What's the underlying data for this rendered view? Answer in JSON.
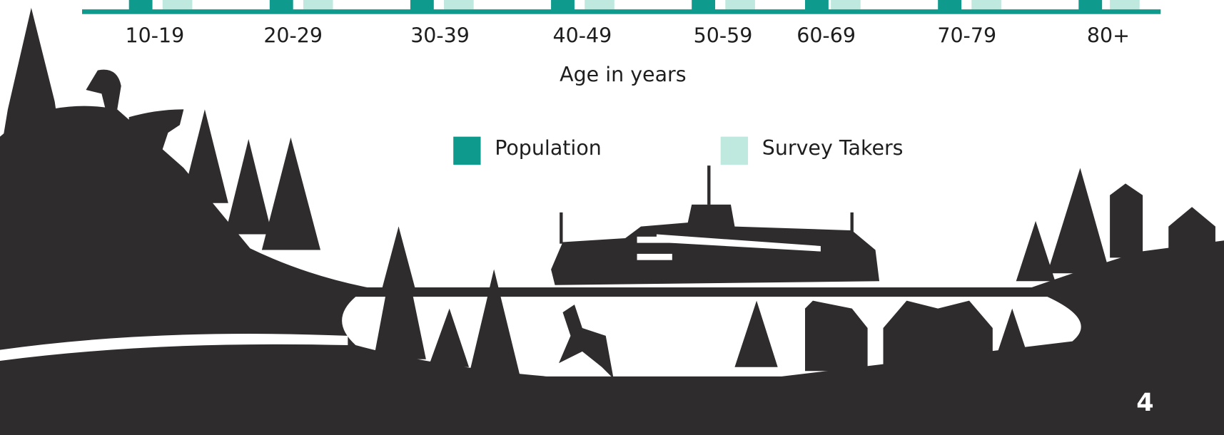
{
  "axis": {
    "categories": [
      "10-19",
      "20-29",
      "30-39",
      "40-49",
      "50-59",
      "60-69",
      "70-79",
      "80+"
    ],
    "label": "Age in years"
  },
  "legend": [
    {
      "name": "Population",
      "color": "#0f9a8e"
    },
    {
      "name": "Survey Takers",
      "color": "#bfe8df"
    }
  ],
  "page_number": "4"
}
